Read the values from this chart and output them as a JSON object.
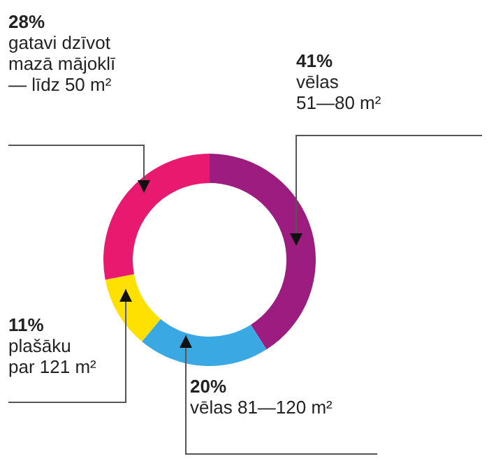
{
  "chart_data": {
    "type": "donut",
    "categories": [
      "vēlas\n51—80 m²",
      "vēlas 81—120 m²",
      "plašāku\npar 121 m²",
      "gatavi dzīvot\nmazā mājoklī\n— līdz 50 m²"
    ],
    "values": [
      41,
      20,
      11,
      28
    ],
    "value_labels": [
      "41%",
      "20%",
      "11%",
      "28%"
    ],
    "colors": [
      "#9c1c80",
      "#3aa8e2",
      "#ffe100",
      "#e8196f"
    ]
  }
}
